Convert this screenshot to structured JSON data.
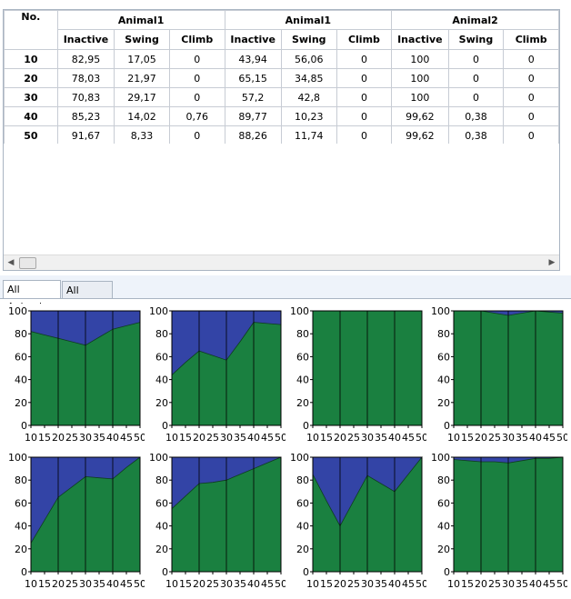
{
  "table": {
    "corner_header": "No.",
    "groups": [
      {
        "label": "Animal1",
        "span": 3
      },
      {
        "label": "Animal1",
        "span": 3
      },
      {
        "label": "Animal2",
        "span": 3
      }
    ],
    "columns": [
      "Inactive",
      "Swing",
      "Climb",
      "Inactive",
      "Swing",
      "Climb",
      "Inactive",
      "Swing",
      "Climb"
    ],
    "rows": [
      {
        "no": "10",
        "cells": [
          "82,95",
          "17,05",
          "0",
          "43,94",
          "56,06",
          "0",
          "100",
          "0",
          "0"
        ]
      },
      {
        "no": "20",
        "cells": [
          "78,03",
          "21,97",
          "0",
          "65,15",
          "34,85",
          "0",
          "100",
          "0",
          "0"
        ]
      },
      {
        "no": "30",
        "cells": [
          "70,83",
          "29,17",
          "0",
          "57,2",
          "42,8",
          "0",
          "100",
          "0",
          "0"
        ]
      },
      {
        "no": "40",
        "cells": [
          "85,23",
          "14,02",
          "0,76",
          "89,77",
          "10,23",
          "0",
          "99,62",
          "0,38",
          "0"
        ]
      },
      {
        "no": "50",
        "cells": [
          "91,67",
          "8,33",
          "0",
          "88,26",
          "11,74",
          "0",
          "99,62",
          "0,38",
          "0"
        ]
      }
    ]
  },
  "tabs": [
    {
      "label": "All Animals",
      "active": true
    },
    {
      "label": "All Groups",
      "active": false
    }
  ],
  "colors": {
    "inactive": "#1a8040",
    "swing": "#3344a6",
    "climb": "#c0392b"
  },
  "chart_data": [
    {
      "type": "area",
      "stacked": true,
      "x": [
        10,
        15,
        20,
        25,
        30,
        35,
        40,
        45,
        50
      ],
      "ylim": [
        0,
        100
      ],
      "series": [
        {
          "values": [
            82,
            79,
            76,
            73,
            70,
            77,
            84,
            87,
            90
          ]
        }
      ]
    },
    {
      "type": "area",
      "stacked": true,
      "x": [
        10,
        15,
        20,
        25,
        30,
        35,
        40,
        45,
        50
      ],
      "ylim": [
        0,
        100
      ],
      "series": [
        {
          "values": [
            44,
            55,
            65,
            61,
            57,
            73,
            90,
            89,
            88
          ]
        }
      ]
    },
    {
      "type": "area",
      "stacked": true,
      "x": [
        10,
        15,
        20,
        25,
        30,
        35,
        40,
        45,
        50
      ],
      "ylim": [
        0,
        100
      ],
      "series": [
        {
          "values": [
            100,
            100,
            100,
            100,
            100,
            100,
            100,
            100,
            100
          ]
        }
      ]
    },
    {
      "type": "area",
      "stacked": true,
      "x": [
        10,
        15,
        20,
        25,
        30,
        35,
        40,
        45,
        50
      ],
      "ylim": [
        0,
        100
      ],
      "series": [
        {
          "values": [
            100,
            100,
            100,
            98,
            96,
            98,
            100,
            99,
            98
          ]
        }
      ]
    },
    {
      "type": "area",
      "stacked": true,
      "x": [
        10,
        15,
        20,
        25,
        30,
        35,
        40,
        45,
        50
      ],
      "ylim": [
        0,
        100
      ],
      "series": [
        {
          "values": [
            25,
            45,
            65,
            74,
            83,
            82,
            81,
            91,
            100
          ]
        }
      ]
    },
    {
      "type": "area",
      "stacked": true,
      "x": [
        10,
        15,
        20,
        25,
        30,
        35,
        40,
        45,
        50
      ],
      "ylim": [
        0,
        100
      ],
      "series": [
        {
          "values": [
            55,
            66,
            77,
            78,
            80,
            85,
            90,
            95,
            100
          ]
        }
      ]
    },
    {
      "type": "area",
      "stacked": true,
      "x": [
        10,
        15,
        20,
        25,
        30,
        35,
        40,
        45,
        50
      ],
      "ylim": [
        0,
        100
      ],
      "series": [
        {
          "values": [
            85,
            62,
            40,
            62,
            84,
            77,
            70,
            85,
            100
          ]
        }
      ]
    },
    {
      "type": "area",
      "stacked": true,
      "x": [
        10,
        15,
        20,
        25,
        30,
        35,
        40,
        45,
        50
      ],
      "ylim": [
        0,
        100
      ],
      "series": [
        {
          "values": [
            98,
            97,
            96,
            96,
            95,
            97,
            99,
            99,
            100
          ]
        }
      ]
    }
  ],
  "chart_axis": {
    "y_ticks": [
      "0",
      "20",
      "40",
      "60",
      "80",
      "100"
    ],
    "x_ticks": [
      "10",
      "15",
      "20",
      "25",
      "30",
      "35",
      "40",
      "45",
      "50"
    ]
  }
}
